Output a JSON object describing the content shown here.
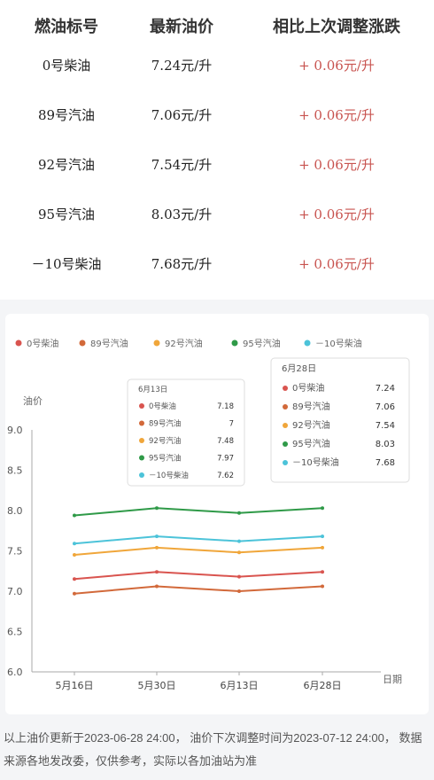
{
  "table": {
    "headers": [
      "燃油标号",
      "最新油价",
      "相比上次调整涨跌"
    ],
    "rows": [
      {
        "name": "0号柴油",
        "price": "7.24元/升",
        "change": "+ 0.06元/升"
      },
      {
        "name": "89号汽油",
        "price": "7.06元/升",
        "change": "+ 0.06元/升"
      },
      {
        "name": "92号汽油",
        "price": "7.54元/升",
        "change": "+ 0.06元/升"
      },
      {
        "name": "95号汽油",
        "price": "8.03元/升",
        "change": "+ 0.06元/升"
      },
      {
        "name": "－10号柴油",
        "price": "7.68元/升",
        "change": "+ 0.06元/升"
      }
    ]
  },
  "chart_data": {
    "type": "line",
    "ylabel": "油价",
    "xlabel": "日期",
    "ylim": [
      6.0,
      9.0
    ],
    "yticks": [
      "9.0",
      "8.5",
      "8.0",
      "7.5",
      "7.0",
      "6.5",
      "6.0"
    ],
    "categories": [
      "5月16日",
      "5月30日",
      "6月13日",
      "6月28日"
    ],
    "legend_position": "top",
    "grid": false,
    "series": [
      {
        "name": "0号柴油",
        "color": "#d9544f",
        "values": [
          7.15,
          7.24,
          7.18,
          7.24
        ]
      },
      {
        "name": "89号汽油",
        "color": "#d2693a",
        "values": [
          6.97,
          7.06,
          7.0,
          7.06
        ]
      },
      {
        "name": "92号汽油",
        "color": "#f0a63a",
        "values": [
          7.45,
          7.54,
          7.48,
          7.54
        ]
      },
      {
        "name": "95号汽油",
        "color": "#2f9a48",
        "values": [
          7.94,
          8.03,
          7.97,
          8.03
        ]
      },
      {
        "name": "－10号柴油",
        "color": "#4cc3d9",
        "values": [
          7.59,
          7.68,
          7.62,
          7.68
        ]
      }
    ],
    "tooltips": [
      {
        "title": "6月13日",
        "items": [
          {
            "name": "0号柴油",
            "value": "7.18"
          },
          {
            "name": "89号汽油",
            "value": "7"
          },
          {
            "name": "92号汽油",
            "value": "7.48"
          },
          {
            "name": "95号汽油",
            "value": "7.97"
          },
          {
            "name": "－10号柴油",
            "value": "7.62"
          }
        ]
      },
      {
        "title": "6月28日",
        "items": [
          {
            "name": "0号柴油",
            "value": "7.24"
          },
          {
            "name": "89号汽油",
            "value": "7.06"
          },
          {
            "name": "92号汽油",
            "value": "7.54"
          },
          {
            "name": "95号汽油",
            "value": "8.03"
          },
          {
            "name": "－10号柴油",
            "value": "7.68"
          }
        ]
      }
    ]
  },
  "footnote": "以上油价更新于2023-06-28 24:00， 油价下次调整时间为2023-07-12 24:00， 数据来源各地发改委，仅供参考，实际以各加油站为准"
}
